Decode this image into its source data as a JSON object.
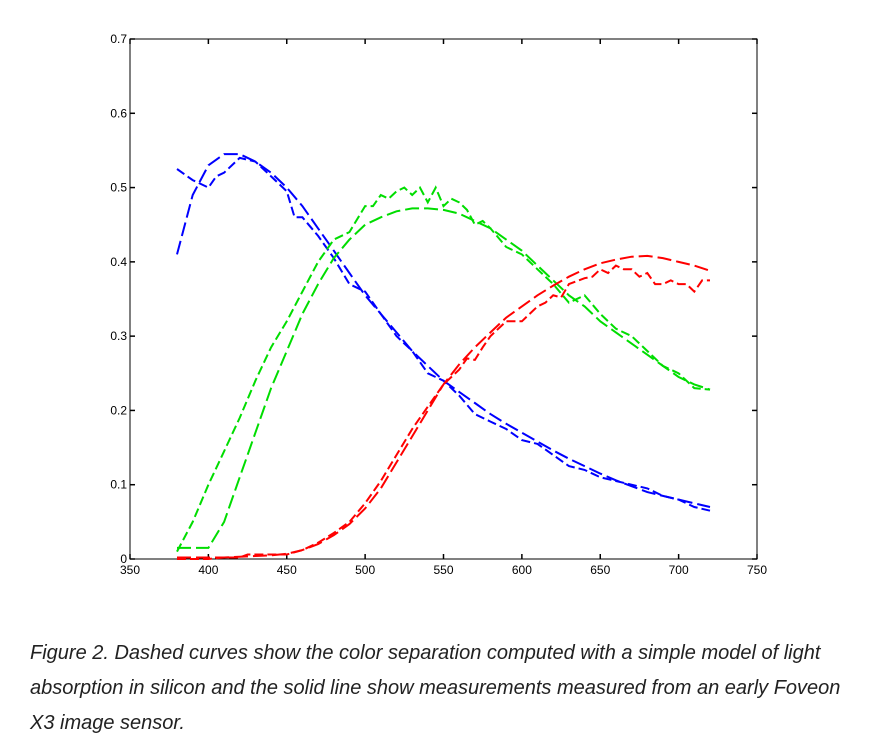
{
  "caption": "Figure 2. Dashed curves show the color separation computed with a simple model of light absorption in silicon and the solid line show measurements measured from an early Foveon X3 image sensor.",
  "chart_data": {
    "type": "line",
    "title": "",
    "xlabel": "",
    "ylabel": "",
    "xlim": [
      350,
      750
    ],
    "ylim": [
      0,
      0.7
    ],
    "xticks": [
      "350",
      "400",
      "450",
      "500",
      "550",
      "600",
      "650",
      "700",
      "750"
    ],
    "yticks": [
      "0",
      "0.1",
      "0.2",
      "0.3",
      "0.4",
      "0.5",
      "0.6",
      "0.7"
    ],
    "grid": false,
    "legend": "none",
    "colors": {
      "blue": "#0000ff",
      "green": "#00dd00",
      "red": "#ff0000"
    },
    "series": [
      {
        "color": "#0000ff",
        "dash": "long",
        "x": [
          380,
          390,
          400,
          410,
          420,
          430,
          440,
          450,
          460,
          470,
          480,
          490,
          500,
          510,
          520,
          530,
          540,
          550,
          560,
          570,
          580,
          590,
          600,
          610,
          620,
          630,
          640,
          650,
          660,
          670,
          680,
          690,
          700,
          710,
          720
        ],
        "y": [
          0.41,
          0.49,
          0.53,
          0.545,
          0.545,
          0.535,
          0.52,
          0.5,
          0.475,
          0.445,
          0.415,
          0.385,
          0.355,
          0.33,
          0.305,
          0.28,
          0.26,
          0.24,
          0.225,
          0.21,
          0.195,
          0.182,
          0.17,
          0.158,
          0.146,
          0.135,
          0.125,
          0.115,
          0.106,
          0.098,
          0.09,
          0.085,
          0.08,
          0.075,
          0.07
        ]
      },
      {
        "color": "#0000ff",
        "dash": "short",
        "x": [
          380,
          390,
          400,
          405,
          410,
          420,
          430,
          440,
          450,
          455,
          460,
          470,
          480,
          490,
          500,
          510,
          520,
          530,
          540,
          550,
          560,
          570,
          580,
          590,
          600,
          610,
          620,
          630,
          640,
          650,
          660,
          670,
          680,
          690,
          700,
          710,
          720
        ],
        "y": [
          0.525,
          0.51,
          0.5,
          0.515,
          0.52,
          0.54,
          0.535,
          0.515,
          0.495,
          0.46,
          0.46,
          0.435,
          0.405,
          0.37,
          0.36,
          0.33,
          0.3,
          0.28,
          0.25,
          0.24,
          0.22,
          0.195,
          0.185,
          0.175,
          0.16,
          0.155,
          0.14,
          0.125,
          0.12,
          0.11,
          0.105,
          0.1,
          0.095,
          0.085,
          0.08,
          0.07,
          0.065
        ]
      },
      {
        "color": "#00dd00",
        "dash": "long",
        "x": [
          380,
          390,
          400,
          410,
          420,
          430,
          440,
          450,
          460,
          470,
          480,
          490,
          500,
          510,
          520,
          530,
          540,
          550,
          560,
          570,
          580,
          590,
          600,
          610,
          620,
          630,
          640,
          650,
          660,
          670,
          680,
          690,
          700,
          710,
          720
        ],
        "y": [
          0.015,
          0.015,
          0.015,
          0.05,
          0.11,
          0.17,
          0.23,
          0.28,
          0.33,
          0.37,
          0.405,
          0.43,
          0.45,
          0.46,
          0.468,
          0.472,
          0.472,
          0.47,
          0.465,
          0.455,
          0.445,
          0.43,
          0.415,
          0.395,
          0.375,
          0.355,
          0.34,
          0.32,
          0.305,
          0.29,
          0.275,
          0.26,
          0.245,
          0.235,
          0.228
        ]
      },
      {
        "color": "#00dd00",
        "dash": "short",
        "x": [
          380,
          390,
          400,
          410,
          420,
          430,
          440,
          450,
          460,
          470,
          480,
          490,
          500,
          505,
          510,
          515,
          520,
          525,
          530,
          535,
          540,
          545,
          550,
          555,
          560,
          565,
          570,
          575,
          580,
          590,
          600,
          610,
          620,
          630,
          640,
          650,
          660,
          670,
          680,
          690,
          700,
          710,
          720
        ],
        "y": [
          0.01,
          0.05,
          0.1,
          0.145,
          0.19,
          0.24,
          0.285,
          0.32,
          0.36,
          0.4,
          0.43,
          0.44,
          0.475,
          0.475,
          0.49,
          0.485,
          0.495,
          0.5,
          0.49,
          0.5,
          0.48,
          0.5,
          0.475,
          0.485,
          0.48,
          0.47,
          0.45,
          0.455,
          0.445,
          0.42,
          0.41,
          0.39,
          0.37,
          0.345,
          0.355,
          0.33,
          0.31,
          0.3,
          0.28,
          0.26,
          0.25,
          0.23,
          0.228
        ]
      },
      {
        "color": "#ff0000",
        "dash": "long",
        "x": [
          380,
          390,
          400,
          410,
          420,
          430,
          440,
          450,
          460,
          470,
          480,
          490,
          500,
          510,
          520,
          530,
          540,
          550,
          560,
          570,
          580,
          590,
          600,
          610,
          620,
          630,
          640,
          650,
          660,
          670,
          680,
          690,
          700,
          710,
          720
        ],
        "y": [
          0.002,
          0.002,
          0.002,
          0.002,
          0.003,
          0.004,
          0.005,
          0.007,
          0.012,
          0.02,
          0.032,
          0.047,
          0.068,
          0.095,
          0.13,
          0.165,
          0.2,
          0.235,
          0.262,
          0.285,
          0.305,
          0.325,
          0.34,
          0.355,
          0.368,
          0.38,
          0.39,
          0.398,
          0.403,
          0.407,
          0.408,
          0.405,
          0.4,
          0.395,
          0.388
        ]
      },
      {
        "color": "#ff0000",
        "dash": "short",
        "x": [
          380,
          390,
          400,
          410,
          420,
          425,
          430,
          440,
          450,
          460,
          470,
          480,
          490,
          500,
          510,
          520,
          530,
          540,
          550,
          560,
          565,
          570,
          575,
          580,
          590,
          600,
          610,
          615,
          620,
          625,
          630,
          640,
          645,
          650,
          655,
          660,
          665,
          670,
          675,
          680,
          685,
          690,
          695,
          700,
          705,
          710,
          715,
          720
        ],
        "y": [
          0.0,
          0.0,
          0.0,
          0.002,
          0.002,
          0.006,
          0.006,
          0.006,
          0.006,
          0.012,
          0.022,
          0.035,
          0.05,
          0.075,
          0.105,
          0.14,
          0.175,
          0.205,
          0.235,
          0.255,
          0.27,
          0.268,
          0.285,
          0.3,
          0.32,
          0.32,
          0.34,
          0.345,
          0.355,
          0.352,
          0.37,
          0.378,
          0.38,
          0.39,
          0.385,
          0.395,
          0.39,
          0.39,
          0.38,
          0.385,
          0.37,
          0.37,
          0.375,
          0.37,
          0.37,
          0.36,
          0.375,
          0.375
        ]
      }
    ]
  }
}
